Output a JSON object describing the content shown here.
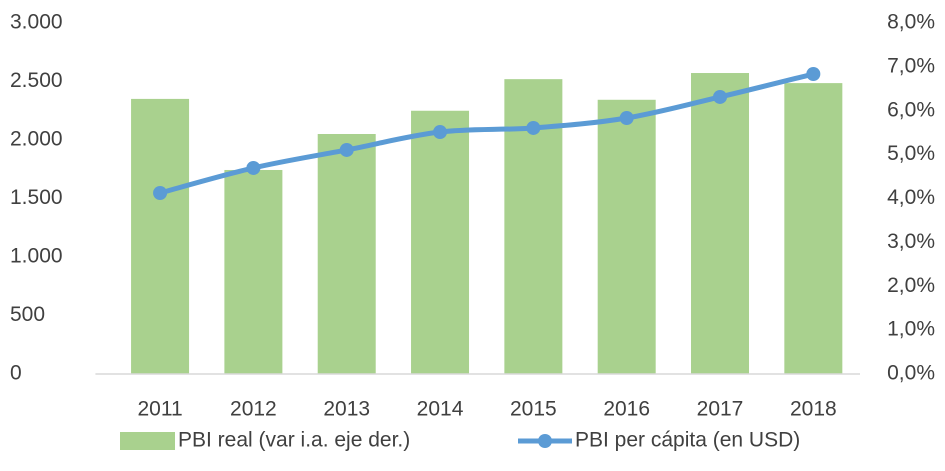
{
  "chart_data": {
    "type": "bar_line",
    "categories": [
      "2011",
      "2012",
      "2013",
      "2014",
      "2015",
      "2016",
      "2017",
      "2018"
    ],
    "series": [
      {
        "name": "PBI real (var i.a. eje der.)",
        "type": "bar",
        "axis": "y2",
        "color": "#a9d18e",
        "values": [
          6.27,
          4.65,
          5.47,
          6.0,
          6.72,
          6.25,
          6.86,
          6.63
        ]
      },
      {
        "name": "PBI per cápita (en USD)",
        "type": "line",
        "axis": "y",
        "color": "#5b9bd5",
        "values": [
          1547,
          1761,
          1915,
          2068,
          2103,
          2188,
          2368,
          2564
        ]
      }
    ],
    "ylim": [
      0,
      3000
    ],
    "yticks": [
      0,
      500,
      {
        "value": 1000,
        "label": "1.000"
      },
      {
        "value": 1500,
        "label": "1.500"
      },
      {
        "value": 2000,
        "label": "2.000"
      },
      {
        "value": 2500,
        "label": "2.500"
      },
      {
        "value": 3000,
        "label": "3.000"
      }
    ],
    "y2lim": [
      0,
      8
    ],
    "y2ticks": [
      {
        "value": 0,
        "label": "0,0%"
      },
      {
        "value": 1,
        "label": "1,0%"
      },
      {
        "value": 2,
        "label": "2,0%"
      },
      {
        "value": 3,
        "label": "3,0%"
      },
      {
        "value": 4,
        "label": "4,0%"
      },
      {
        "value": 5,
        "label": "5,0%"
      },
      {
        "value": 6,
        "label": "6,0%"
      },
      {
        "value": 7,
        "label": "7,0%"
      },
      {
        "value": 8,
        "label": "8,0%"
      }
    ],
    "grid": false
  }
}
